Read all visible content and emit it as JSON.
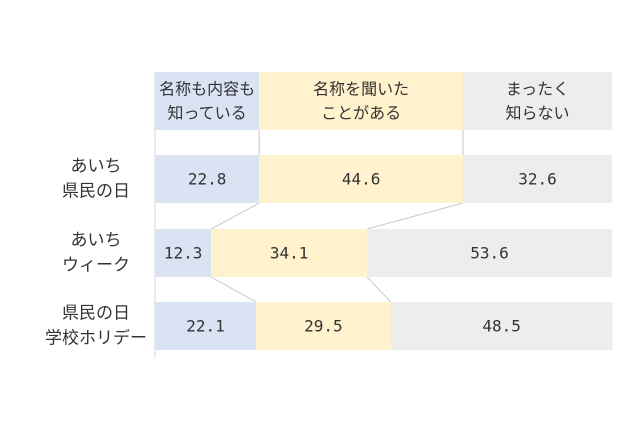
{
  "colors": {
    "series": [
      "#dae3f3",
      "#fff2cc",
      "#ededed"
    ],
    "connector": "#c8c8c8",
    "axis": "#d9d9d9",
    "text": "#333333"
  },
  "chart_data": {
    "type": "bar",
    "orientation": "horizontal",
    "stacked": true,
    "title": "",
    "xlabel": "",
    "ylabel": "",
    "xlim": [
      0,
      100
    ],
    "grid": false,
    "legend": "top (column headers)",
    "categories": [
      [
        "あいち",
        "県民の日"
      ],
      [
        "あいち",
        "ウィーク"
      ],
      [
        "県民の日",
        "学校ホリデー"
      ]
    ],
    "series": [
      {
        "name": [
          "名称も内容も",
          "知っている"
        ],
        "values": [
          22.8,
          12.3,
          22.1
        ],
        "labels": [
          "22.8",
          "12.3",
          "22.1"
        ]
      },
      {
        "name": [
          "名称を聞いた",
          "ことがある"
        ],
        "values": [
          44.6,
          34.1,
          29.5
        ],
        "labels": [
          "44.6",
          "34.1",
          "29.5"
        ]
      },
      {
        "name": [
          "まったく",
          "知らない"
        ],
        "values": [
          32.6,
          53.6,
          48.5
        ],
        "labels": [
          "32.6",
          "53.6",
          "48.5"
        ]
      }
    ]
  }
}
